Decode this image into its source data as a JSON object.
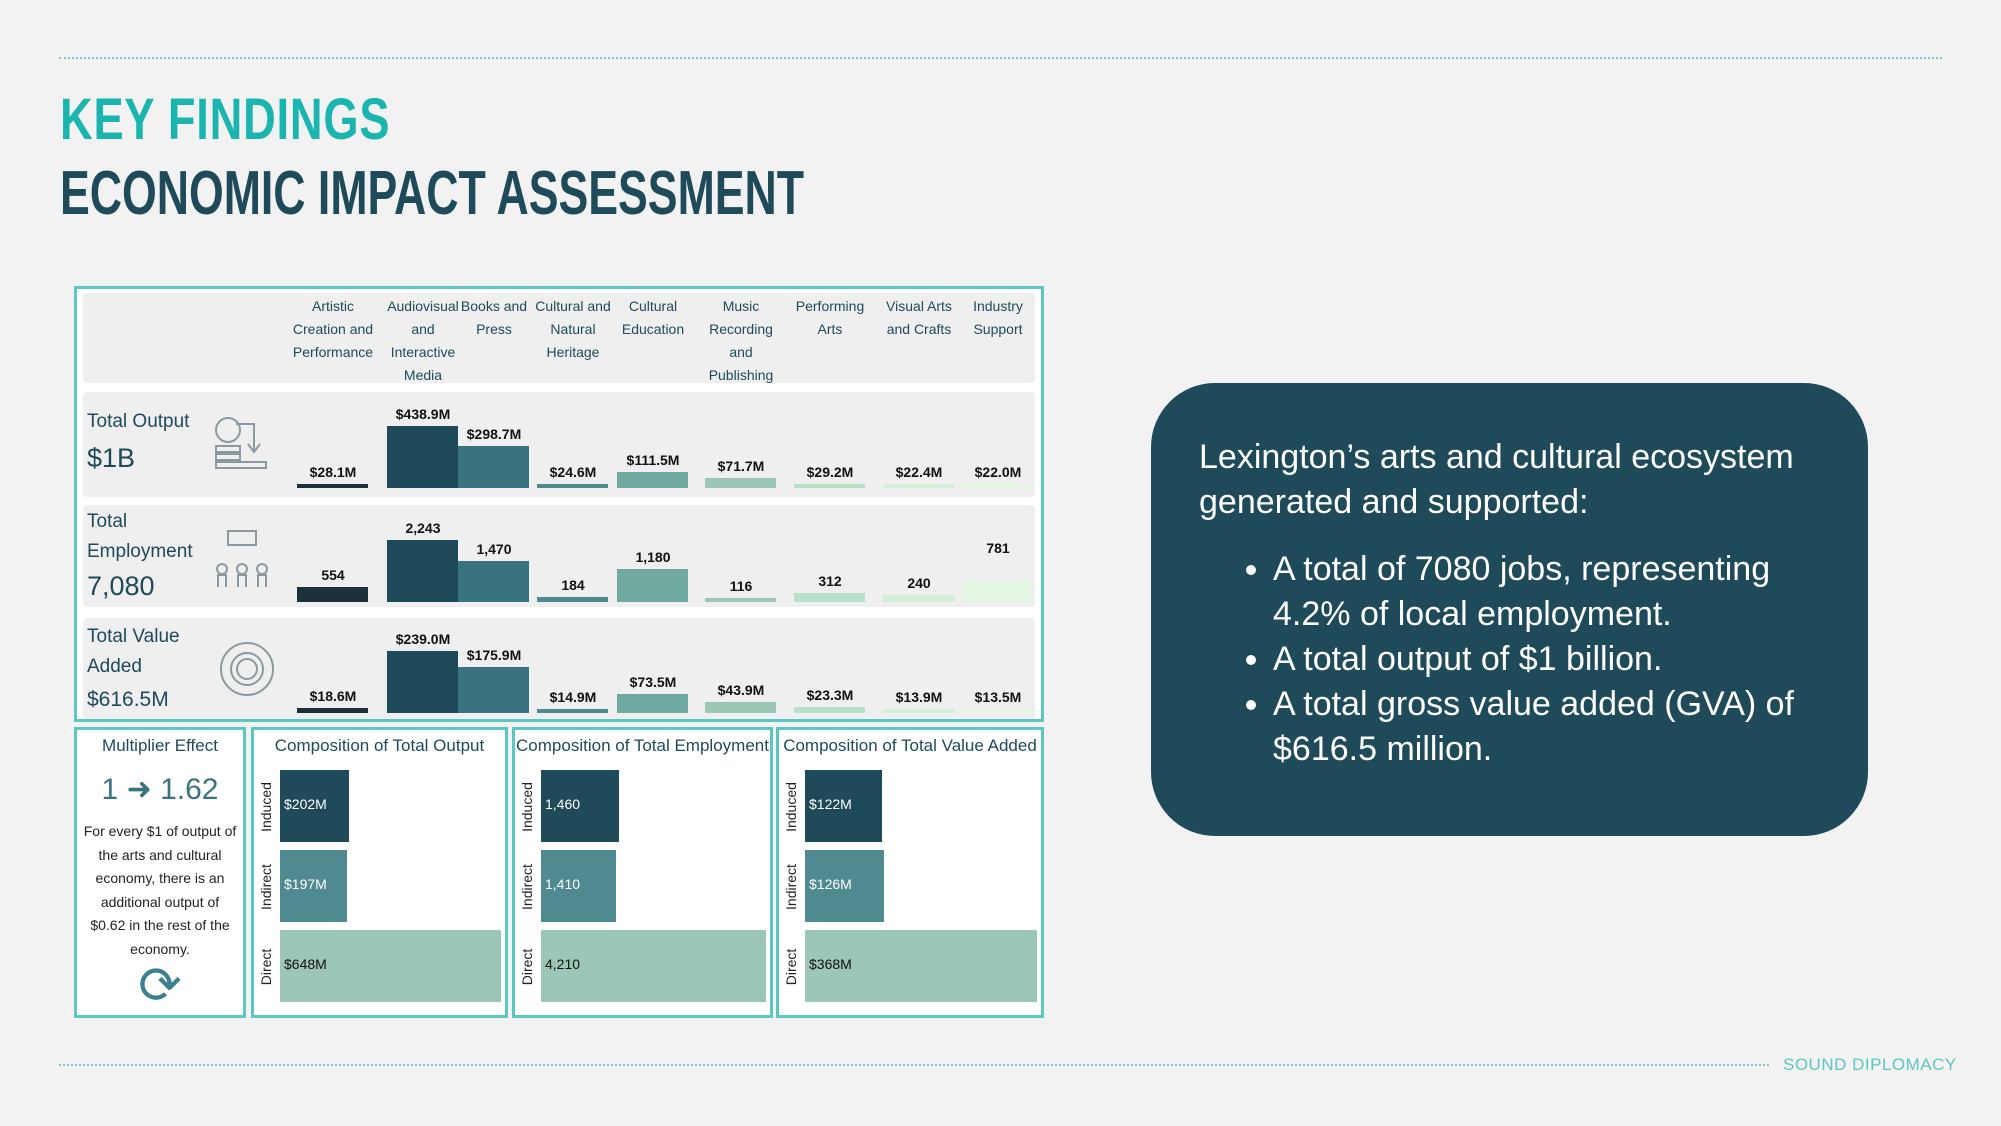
{
  "header": {
    "kicker": "KEY FINDINGS",
    "title": "ECONOMIC IMPACT ASSESSMENT"
  },
  "chart_data": [
    {
      "type": "bar",
      "title": "Total Output",
      "headline": "$1B",
      "categories": [
        "Artistic Creation and Performance",
        "Audiovisual and Interactive Media",
        "Books and Press",
        "Cultural and Natural Heritage",
        "Cultural Education",
        "Music Recording and Publishing",
        "Performing Arts",
        "Visual Arts and Crafts",
        "Industry Support"
      ],
      "values": [
        28.1,
        438.9,
        298.7,
        24.6,
        111.5,
        71.7,
        29.2,
        22.4,
        22.0
      ],
      "labels": [
        "$28.1M",
        "$438.9M",
        "$298.7M",
        "$24.6M",
        "$111.5M",
        "$71.7M",
        "$29.2M",
        "$22.4M",
        "$22.0M"
      ],
      "unit": "$M"
    },
    {
      "type": "bar",
      "title": "Total Employment",
      "headline": "7,080",
      "values": [
        554,
        2243,
        1470,
        184,
        1180,
        116,
        312,
        240,
        781
      ],
      "labels": [
        "554",
        "2,243",
        "1,470",
        "184",
        "1,180",
        "116",
        "312",
        "240",
        "781"
      ],
      "unit": "jobs"
    },
    {
      "type": "bar",
      "title": "Total Value Added",
      "headline": "$616.5M",
      "values": [
        18.6,
        239.0,
        175.9,
        14.9,
        73.5,
        43.9,
        23.3,
        13.9,
        13.5
      ],
      "labels": [
        "$18.6M",
        "$239.0M",
        "$175.9M",
        "$14.9M",
        "$73.5M",
        "$43.9M",
        "$23.3M",
        "$13.9M",
        "$13.5M"
      ],
      "unit": "$M"
    },
    {
      "type": "bar",
      "title": "Composition of Total Output",
      "categories": [
        "Induced",
        "Indirect",
        "Direct"
      ],
      "values": [
        202,
        197,
        648
      ],
      "labels": [
        "$202M",
        "$197M",
        "$648M"
      ]
    },
    {
      "type": "bar",
      "title": "Composition of Total Employment",
      "categories": [
        "Induced",
        "Indirect",
        "Direct"
      ],
      "values": [
        1460,
        1410,
        4210
      ],
      "labels": [
        "1,460",
        "1,410",
        "4,210"
      ]
    },
    {
      "type": "bar",
      "title": "Composition of Total Value Added",
      "categories": [
        "Induced",
        "Indirect",
        "Direct"
      ],
      "values": [
        122,
        126,
        368
      ],
      "labels": [
        "$122M",
        "$126M",
        "$368M"
      ]
    }
  ],
  "colors": {
    "cats": [
      "#1b3039",
      "#1e4a5a",
      "#3a7380",
      "#4f8a90",
      "#6fa9a0",
      "#9cc6b6",
      "#b8e0c6",
      "#d4efd9",
      "#e3f6e4"
    ],
    "comp": [
      "#1e4a5a",
      "#4f8a90",
      "#9cc6b6"
    ]
  },
  "multiplier": {
    "title": "Multiplier Effect",
    "from": "1",
    "to": "1.62",
    "text": "For every $1 of output of the arts and cultural economy, there is an additional output of $0.62 in the rest of the economy."
  },
  "card": {
    "intro": "Lexington’s arts and cultural ecosystem generated and supported:",
    "bullets": [
      "A total of 7080 jobs, representing 4.2% of local employment.",
      "A total output of $1 billion.",
      "A total gross value added (GVA) of $616.5 million."
    ]
  },
  "brand": "SOUND DIPLOMACY"
}
